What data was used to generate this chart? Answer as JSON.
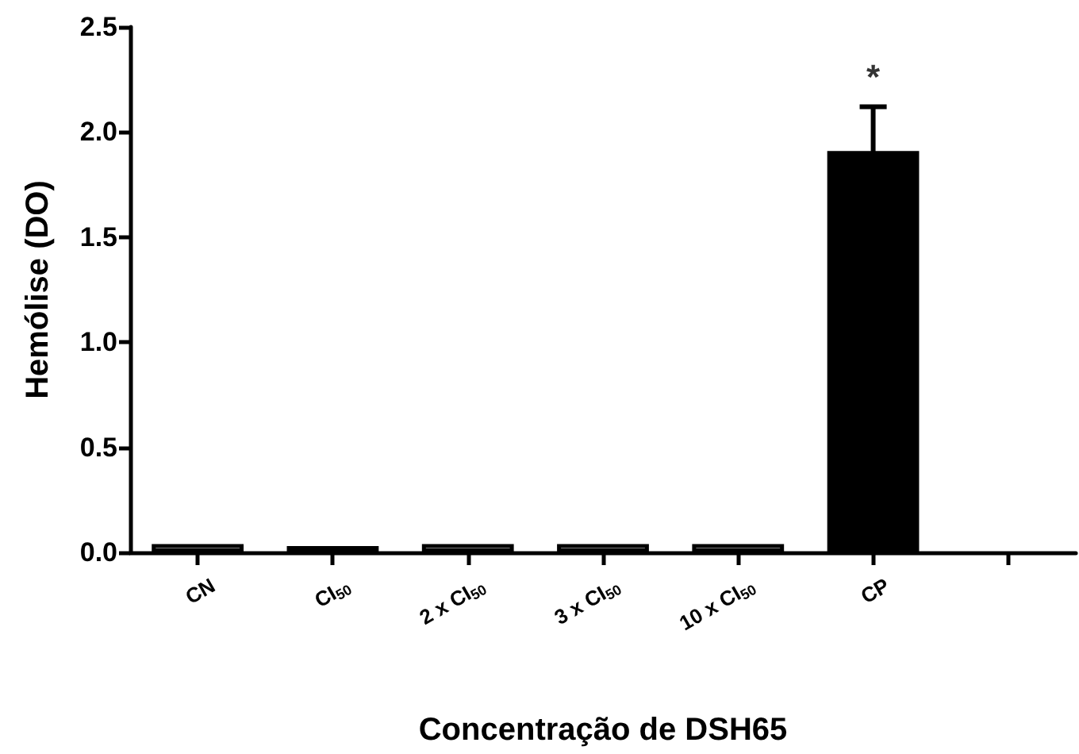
{
  "chart_data": {
    "type": "bar",
    "xlabel": "Concentração de DSH65",
    "ylabel": "Hemólise (DO)",
    "categories": [
      "CN",
      "CI$_{50}$",
      "2 x CI$_{50}$",
      "3 x CI$_{50}$",
      "10 x CI$_{50}$",
      "CP",
      null
    ],
    "values": [
      0.04,
      0.03,
      0.04,
      0.04,
      0.04,
      1.91,
      null
    ],
    "colors": [
      "#ffffff",
      "#000000",
      "#ffffff",
      "#ffffff",
      "#ffffff",
      "#000000",
      "#ffffff"
    ],
    "errors": [
      null,
      null,
      null,
      null,
      null,
      0.21,
      null
    ],
    "ylim": [
      0,
      2.5
    ],
    "yticks": [
      {
        "value": 0,
        "label": "0.0"
      },
      0.5,
      {
        "value": 1,
        "label": "1.0"
      },
      1.5,
      {
        "value": 2,
        "label": "2.0"
      },
      2.5
    ],
    "annotations": [
      "*"
    ],
    "grid": false
  }
}
